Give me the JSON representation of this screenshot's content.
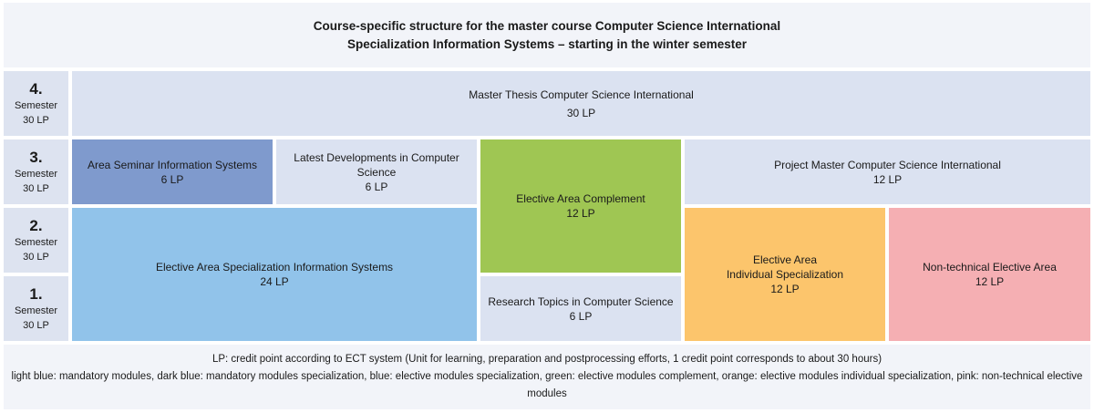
{
  "title": {
    "line1": "Course-specific structure for the master course Computer Science International",
    "line2": "Specialization Information Systems – starting in the winter semester"
  },
  "semesters": [
    {
      "num": "4.",
      "label": "Semester",
      "lp": "30 LP"
    },
    {
      "num": "3.",
      "label": "Semester",
      "lp": "30 LP"
    },
    {
      "num": "2.",
      "label": "Semester",
      "lp": "30 LP"
    },
    {
      "num": "1.",
      "label": "Semester",
      "lp": "30 LP"
    }
  ],
  "modules": {
    "master_thesis": {
      "name": "Master Thesis Computer Science International",
      "lp": "30 LP"
    },
    "area_seminar": {
      "name": "Area Seminar Information Systems",
      "lp": "6 LP"
    },
    "latest_developments": {
      "name": "Latest Developments in Computer Science",
      "lp": "6 LP"
    },
    "elective_complement": {
      "name": "Elective Area Complement",
      "lp": "12 LP"
    },
    "project_master": {
      "name": "Project Master Computer Science International",
      "lp": "12 LP"
    },
    "elective_specialization": {
      "name": "Elective Area Specialization Information Systems",
      "lp": "24 LP"
    },
    "research_topics": {
      "name": "Research Topics in Computer Science",
      "lp": "6 LP"
    },
    "individual_specialization": {
      "line1": "Elective Area",
      "line2": "Individual Specialization",
      "lp": "12 LP"
    },
    "non_technical": {
      "name": "Non-technical Elective Area",
      "lp": "12 LP"
    }
  },
  "footer": {
    "line1": "LP: credit point according to ECT system (Unit for learning, preparation and postprocessing efforts, 1 credit point corresponds to about 30 hours)",
    "line2": "light blue: mandatory modules, dark blue: mandatory modules specialization, blue: elective modules specialization, green: elective modules complement, orange: elective modules individual specialization, pink: non-technical elective modules"
  },
  "colors": {
    "light_blue": "#dbe2f1",
    "dark_blue": "#7f9acd",
    "blue": "#91c3ea",
    "green": "#9fc653",
    "orange": "#fcc56c",
    "pink": "#f5afb3"
  }
}
